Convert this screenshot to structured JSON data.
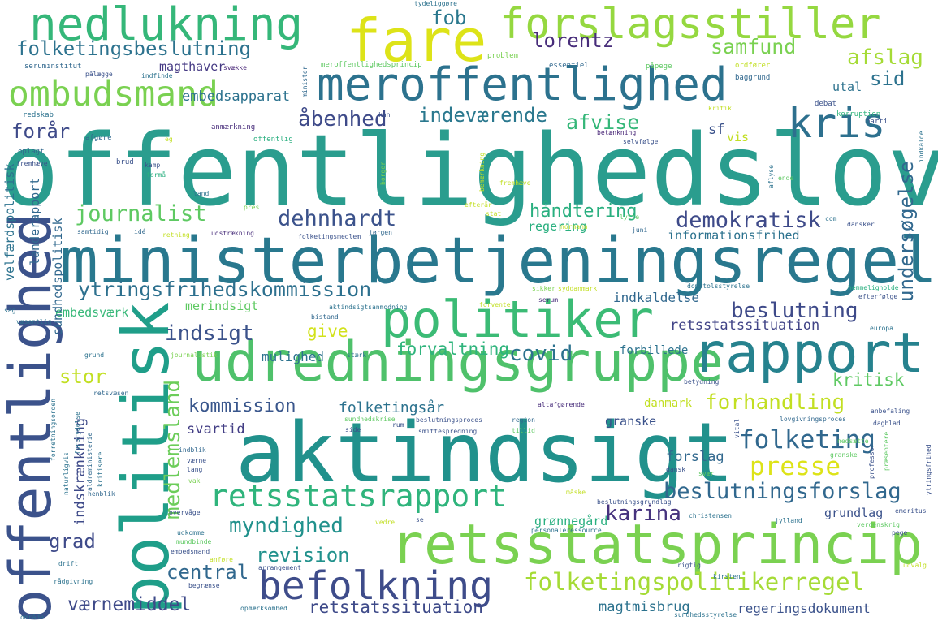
{
  "words": [
    {
      "text": "offentlighedslov",
      "color": "#2a9d8e"
    },
    {
      "text": "ministerbetjeningsregel",
      "color": "#29788e"
    },
    {
      "text": "aktindsigt",
      "color": "#21918c"
    },
    {
      "text": "udredningsgruppe",
      "color": "#4fc16b"
    },
    {
      "text": "politisk",
      "color": "#1f9e89"
    },
    {
      "text": "retsstatsprincip",
      "color": "#7ad151"
    },
    {
      "text": "rapport",
      "color": "#26828e"
    },
    {
      "text": "politiker",
      "color": "#3bbb75"
    },
    {
      "text": "meroffentlighed",
      "color": "#2c728e"
    },
    {
      "text": "offentlighed",
      "color": "#3b528b"
    },
    {
      "text": "nedlukning",
      "color": "#35b779"
    },
    {
      "text": "fare",
      "color": "#dde318"
    },
    {
      "text": "forslagsstiller",
      "color": "#95d840"
    },
    {
      "text": "befolkning",
      "color": "#3e4c8a"
    },
    {
      "text": "ombudsmand",
      "color": "#7ad151"
    },
    {
      "text": "kris",
      "color": "#2d708e"
    },
    {
      "text": "retsstatsrapport",
      "color": "#2fb47c"
    },
    {
      "text": "folketingspolitikerregel",
      "color": "#a5db36"
    },
    {
      "text": "presse",
      "color": "#dde318"
    },
    {
      "text": "folketing",
      "color": "#31688e"
    },
    {
      "text": "beslutningsforslag",
      "color": "#31688e"
    },
    {
      "text": "ytringsfrihedskommission",
      "color": "#2d708e"
    },
    {
      "text": "journalist",
      "color": "#5ec962"
    },
    {
      "text": "dehnhardt",
      "color": "#3b528b"
    },
    {
      "text": "demokratisk",
      "color": "#3e4a89"
    },
    {
      "text": "beslutning",
      "color": "#3e4a89"
    },
    {
      "text": "indsigt",
      "color": "#3b528b"
    },
    {
      "text": "kommission",
      "color": "#39568c"
    },
    {
      "text": "folketingsbeslutning",
      "color": "#2c728e"
    },
    {
      "text": "myndighed",
      "color": "#21918c"
    },
    {
      "text": "central",
      "color": "#31688e"
    },
    {
      "text": "revision",
      "color": "#21918c"
    },
    {
      "text": "værnemiddel",
      "color": "#3e4a89"
    },
    {
      "text": "karina",
      "color": "#46337e"
    },
    {
      "text": "lorentz",
      "color": "#472c7a"
    },
    {
      "text": "fob",
      "color": "#2a788e"
    },
    {
      "text": "samfund",
      "color": "#7ad151"
    },
    {
      "text": "afslag",
      "color": "#a5db36"
    },
    {
      "text": "sid",
      "color": "#2c728e"
    },
    {
      "text": "indeværende",
      "color": "#2a788e"
    },
    {
      "text": "afvise",
      "color": "#35b779"
    },
    {
      "text": "åbenhed",
      "color": "#3e4a89"
    },
    {
      "text": "forår",
      "color": "#3e4a89"
    },
    {
      "text": "håndtering",
      "color": "#29af7f"
    },
    {
      "text": "forvaltning",
      "color": "#2fb47c"
    },
    {
      "text": "covid",
      "color": "#2c728e"
    },
    {
      "text": "give",
      "color": "#d2e21b"
    },
    {
      "text": "stor",
      "color": "#c2df23"
    },
    {
      "text": "grad",
      "color": "#3e4a89"
    },
    {
      "text": "retstatssituation",
      "color": "#3e4a89"
    },
    {
      "text": "retsstatssituation",
      "color": "#414487"
    },
    {
      "text": "forhandling",
      "color": "#c2df23"
    },
    {
      "text": "kritisk",
      "color": "#5ec962"
    },
    {
      "text": "undersøgelse",
      "color": "#31688e"
    },
    {
      "text": "medlemsland",
      "color": "#6ccd5a"
    },
    {
      "text": "indskrænkning",
      "color": "#3e4a89"
    },
    {
      "text": "folketingsår",
      "color": "#2c728e"
    },
    {
      "text": "svartid",
      "color": "#433e85"
    },
    {
      "text": "mulighed",
      "color": "#2c728e"
    },
    {
      "text": "embedsapparat",
      "color": "#2c728e"
    },
    {
      "text": "magthaver",
      "color": "#443983"
    },
    {
      "text": "magtmisbrug",
      "color": "#2c728e"
    },
    {
      "text": "regeringsdokument",
      "color": "#3b528b"
    },
    {
      "text": "grundlag",
      "color": "#3b528b"
    },
    {
      "text": "grønnegård",
      "color": "#29af7f"
    },
    {
      "text": "forslag",
      "color": "#31688e"
    },
    {
      "text": "granske",
      "color": "#3b528b"
    },
    {
      "text": "danmark",
      "color": "#c2df23"
    },
    {
      "text": "forbillede",
      "color": "#2c728e"
    },
    {
      "text": "embedsværk",
      "color": "#37b878"
    },
    {
      "text": "merindsigt",
      "color": "#5ec962"
    },
    {
      "text": "indkaldelse",
      "color": "#31688e"
    },
    {
      "text": "regering",
      "color": "#29af7f"
    },
    {
      "text": "informationsfrihed",
      "color": "#2c728e"
    },
    {
      "text": "velfærdspolitisk",
      "color": "#2c728e"
    },
    {
      "text": "landerapport",
      "color": "#31688e"
    },
    {
      "text": "sundhedspolitisk",
      "color": "#31688e"
    },
    {
      "text": "utal",
      "color": "#2c728e"
    },
    {
      "text": "sf",
      "color": "#3b528b"
    },
    {
      "text": "vis",
      "color": "#c2df23"
    },
    {
      "text": "seruminstitut",
      "color": "#31688e"
    },
    {
      "text": "svække",
      "color": "#482677"
    },
    {
      "text": "meroffentlighedsprincip",
      "color": "#5ec962"
    },
    {
      "text": "minister",
      "color": "#31688e"
    },
    {
      "text": "problem",
      "color": "#7ad151"
    },
    {
      "text": "essentiel",
      "color": "#31688e"
    },
    {
      "text": "påpege",
      "color": "#5ec962"
    },
    {
      "text": "ordfører",
      "color": "#c2df23"
    },
    {
      "text": "baggrund",
      "color": "#31688e"
    },
    {
      "text": "korruption",
      "color": "#2fb47c"
    },
    {
      "text": "kritik",
      "color": "#c2df23"
    },
    {
      "text": "debat",
      "color": "#3b528b"
    },
    {
      "text": "parti",
      "color": "#3b528b"
    },
    {
      "text": "indkalde",
      "color": "#2c728e"
    },
    {
      "text": "pålægge",
      "color": "#3b528b"
    },
    {
      "text": "indfinde",
      "color": "#2c728e"
    },
    {
      "text": "redskab",
      "color": "#2c728e"
    },
    {
      "text": "anmærkning",
      "color": "#472c7a"
    },
    {
      "text": "kan",
      "color": "#3b528b"
    },
    {
      "text": "betænkning",
      "color": "#482677"
    },
    {
      "text": "selvfølge",
      "color": "#3b528b"
    },
    {
      "text": "afgøre",
      "color": "#31688e"
    },
    {
      "text": "eg",
      "color": "#c2df23"
    },
    {
      "text": "offentlig",
      "color": "#29af7f"
    },
    {
      "text": "oplagt",
      "color": "#31688e"
    },
    {
      "text": "fremhæve",
      "color": "#3b528b"
    },
    {
      "text": "brud",
      "color": "#3b528b"
    },
    {
      "text": "kamp",
      "color": "#3b528b"
    },
    {
      "text": "formå",
      "color": "#29af7f"
    },
    {
      "text": "land",
      "color": "#2c728e"
    },
    {
      "text": "pres",
      "color": "#7ad151"
    },
    {
      "text": "samtidig",
      "color": "#31688e"
    },
    {
      "text": "idé",
      "color": "#31688e"
    },
    {
      "text": "retning",
      "color": "#c2df23"
    },
    {
      "text": "udstrækning",
      "color": "#472c7a"
    },
    {
      "text": "folketingsmedlem",
      "color": "#3b528b"
    },
    {
      "text": "jørgen",
      "color": "#31688e"
    },
    {
      "text": "normann",
      "color": "#c2df23"
    },
    {
      "text": "juni",
      "color": "#31688e"
    },
    {
      "text": "lytte",
      "color": "#5ec962"
    },
    {
      "text": "efterår",
      "color": "#c2df23"
    },
    {
      "text": "stat",
      "color": "#c2df23"
    },
    {
      "text": "com",
      "color": "#2c728e"
    },
    {
      "text": "dansker",
      "color": "#3b528b"
    },
    {
      "text": "aflyse",
      "color": "#2c728e"
    },
    {
      "text": "ende",
      "color": "#5ec962"
    },
    {
      "text": "sikker",
      "color": "#7ad151"
    },
    {
      "text": "syddanmark",
      "color": "#c2df23"
    },
    {
      "text": "domstolsstyrelse",
      "color": "#2c728e"
    },
    {
      "text": "hemmeligholde",
      "color": "#29af7f"
    },
    {
      "text": "efterfølge",
      "color": "#3b528b"
    },
    {
      "text": "europa",
      "color": "#2c728e"
    },
    {
      "text": "forvente",
      "color": "#c2df23"
    },
    {
      "text": "serum",
      "color": "#472c7a"
    },
    {
      "text": "aktindsigtsanmodning",
      "color": "#2c728e"
    },
    {
      "text": "bistand",
      "color": "#31688e"
    },
    {
      "text": "væsentlig",
      "color": "#2c728e"
    },
    {
      "text": "sag",
      "color": "#2c728e"
    },
    {
      "text": "grund",
      "color": "#2c728e"
    },
    {
      "text": "journalistik",
      "color": "#7ad151"
    },
    {
      "text": "stærk",
      "color": "#2c728e"
    },
    {
      "text": "retsvæsen",
      "color": "#31688e"
    },
    {
      "text": "betydning",
      "color": "#3b528b"
    },
    {
      "text": "anbefaling",
      "color": "#3b528b"
    },
    {
      "text": "altafgørende",
      "color": "#472c7a"
    },
    {
      "text": "sundhedskrise",
      "color": "#5ec962"
    },
    {
      "text": "rum",
      "color": "#3b528b"
    },
    {
      "text": "beslutningsproces",
      "color": "#3b528b"
    },
    {
      "text": "region",
      "color": "#31688e"
    },
    {
      "text": "tillid",
      "color": "#5ec962"
    },
    {
      "text": "smittespredning",
      "color": "#3b528b"
    },
    {
      "text": "lovgivningsproces",
      "color": "#31688e"
    },
    {
      "text": "dagblad",
      "color": "#3b528b"
    },
    {
      "text": "vital",
      "color": "#3b528b"
    },
    {
      "text": "nedsætte",
      "color": "#5ec962"
    },
    {
      "text": "professor",
      "color": "#3b528b"
    },
    {
      "text": "præsentere",
      "color": "#5ec962"
    },
    {
      "text": "ytringsfrihed",
      "color": "#3b528b"
    },
    {
      "text": "dansk",
      "color": "#3b528b"
    },
    {
      "text": "svær",
      "color": "#5ec962"
    },
    {
      "text": "indblik",
      "color": "#31688e"
    },
    {
      "text": "værne",
      "color": "#3b528b"
    },
    {
      "text": "lang",
      "color": "#3b528b"
    },
    {
      "text": "vak",
      "color": "#7ad151"
    },
    {
      "text": "henblik",
      "color": "#31688e"
    },
    {
      "text": "aldreministerie",
      "color": "#31688e"
    },
    {
      "text": "side",
      "color": "#3b528b"
    },
    {
      "text": "forretningsorden",
      "color": "#2c728e"
    },
    {
      "text": "naturligvis",
      "color": "#2c728e"
    },
    {
      "text": "forbrydelse",
      "color": "#2c728e"
    },
    {
      "text": "kritisere",
      "color": "#2c728e"
    },
    {
      "text": "måske",
      "color": "#c2df23"
    },
    {
      "text": "beslutningsgrundlag",
      "color": "#3b528b"
    },
    {
      "text": "christensen",
      "color": "#2c728e"
    },
    {
      "text": "emeritus",
      "color": "#3b528b"
    },
    {
      "text": "overvåge",
      "color": "#3b528b"
    },
    {
      "text": "vedre",
      "color": "#c2df23"
    },
    {
      "text": "se",
      "color": "#3b528b"
    },
    {
      "text": "personaleressource",
      "color": "#2c728e"
    },
    {
      "text": "jylland",
      "color": "#2c728e"
    },
    {
      "text": "verdenskrig",
      "color": "#5ec962"
    },
    {
      "text": "pege",
      "color": "#3b528b"
    },
    {
      "text": "udkomme",
      "color": "#2c728e"
    },
    {
      "text": "mundbinde",
      "color": "#5ec962"
    },
    {
      "text": "embedsmand",
      "color": "#3b528b"
    },
    {
      "text": "drift",
      "color": "#2c728e"
    },
    {
      "text": "anføre",
      "color": "#c2df23"
    },
    {
      "text": "arrangement",
      "color": "#3b528b"
    },
    {
      "text": "rigtig",
      "color": "#3b528b"
    },
    {
      "text": "kirsten",
      "color": "#2c728e"
    },
    {
      "text": "udvalg",
      "color": "#c2df23"
    },
    {
      "text": "rådgivning",
      "color": "#2c728e"
    },
    {
      "text": "begrænse",
      "color": "#3b528b"
    },
    {
      "text": "opmærksomhed",
      "color": "#2c728e"
    },
    {
      "text": "sundhedsstyrelse",
      "color": "#2c728e"
    },
    {
      "text": "område",
      "color": "#2c728e"
    },
    {
      "text": "tydeliggøre",
      "color": "#2c728e"
    },
    {
      "text": "borger",
      "color": "#7ad151"
    },
    {
      "text": "bemærkning",
      "color": "#c2df23"
    },
    {
      "text": "fremhæve",
      "color": "#c2df23"
    },
    {
      "text": "granske",
      "color": "#5ec962"
    }
  ]
}
